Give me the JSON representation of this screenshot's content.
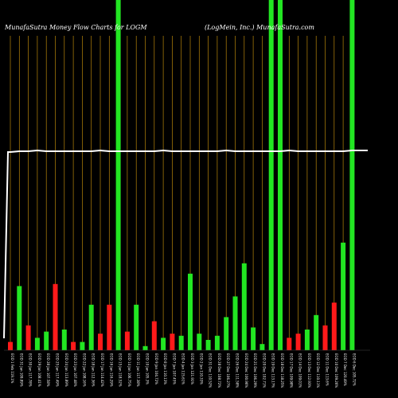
{
  "colors": {
    "background": "#000000",
    "gridline": "#b8860b",
    "up": "#22e622",
    "down": "#ff1a1a",
    "line": "#ffffff",
    "text": "#ffffff"
  },
  "header": {
    "title_left": "MunafaSutra  Money Flow  Charts for LOGM",
    "title_right": "(LogMein,  Inc.) MunafaSutra.com"
  },
  "chart_data": {
    "type": "bar",
    "title": "MunafaSutra  Money Flow  Charts for LOGM",
    "subtitle": "(LogMein,  Inc.) MunafaSutra.com",
    "ylim": [
      0,
      100
    ],
    "grid": true,
    "categories": [
      "EOD 1 Feb 119.1%",
      "EOD 31 Jan 109.89%",
      "EOD 30 Jan 117.78%",
      "EOD 29 Jan 108.41%",
      "EOD 28 Jan 107.58%",
      "EOD 25 Jan 117.49%",
      "EOD 24 Jan 113.89%",
      "EOD 23 Jan 107.48%",
      "EOD 22 Jan 108.16%",
      "EOD 18 Jan 112.36%",
      "EOD 17 Jan 114.42%",
      "EOD 16 Jan 116.29%",
      "EOD 15 Jan 118.52%",
      "EOD 14 Jan 106.75%",
      "EOD 11 Jan 117.38%",
      "EOD 10 Jan 105.3%",
      "EOD 9 Jan 104.72%",
      "EOD 8 Jan 110.13%",
      "EOD 7 Jan 107.45%",
      "EOD 4 Jan 115.61%",
      "EOD 3 Jan 121.91%",
      "EOD 2 Jan 110.33%",
      "EOD 31 Dec 110.52%",
      "EOD 28 Dec 108.72%",
      "EOD 27 Dec 106.27%",
      "EOD 26 Dec 111.58%",
      "EOD 24 Dec 100.96%",
      "EOD 21 Dec 106.29%",
      "EOD 20 Dec 102.71%",
      "EOD 19 Dec 113.17%",
      "EOD 18 Dec 118.25%",
      "EOD 17 Dec 109.98%",
      "EOD 14 Dec 109.01%",
      "EOD 13 Dec 112.93%",
      "EOD 12 Dec 110.11%",
      "EOD 11 Dec 113.6%",
      "EOD 10 Dec 109.26%",
      "EOD 7 Dec 120.49%",
      "EOD 6 Dec 105.72%"
    ],
    "values": [
      4,
      31,
      12,
      6,
      9,
      32,
      10,
      4,
      4,
      22,
      8,
      22,
      100,
      9,
      22,
      2,
      14,
      6,
      8,
      7,
      37,
      8,
      5,
      7,
      16,
      26,
      42,
      11,
      3,
      100,
      100,
      6,
      8,
      10,
      17,
      12,
      23,
      52,
      100
    ],
    "directions": [
      "down",
      "up",
      "down",
      "up",
      "up",
      "down",
      "up",
      "down",
      "up",
      "up",
      "down",
      "down",
      "up",
      "down",
      "up",
      "up",
      "down",
      "up",
      "down",
      "up",
      "up",
      "up",
      "up",
      "up",
      "up",
      "up",
      "up",
      "up",
      "up",
      "up",
      "up",
      "down",
      "down",
      "up",
      "up",
      "down",
      "down",
      "up",
      "up"
    ],
    "line": [
      100,
      98,
      98,
      98,
      98,
      98,
      98,
      98,
      98,
      98,
      98,
      98,
      98,
      98,
      98,
      98,
      98,
      98,
      98,
      98,
      98,
      98,
      98,
      98,
      98,
      98,
      98,
      98,
      98,
      98,
      98,
      98,
      98,
      98,
      98,
      98,
      98,
      98,
      98
    ]
  }
}
